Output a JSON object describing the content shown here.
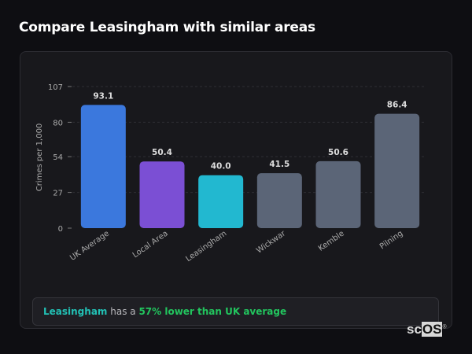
{
  "header": {
    "title": "Compare Leasingham with similar areas"
  },
  "chart_data": {
    "type": "bar",
    "title": "",
    "xlabel": "",
    "ylabel": "Crimes per 1,000",
    "ylim": [
      0,
      107
    ],
    "yticks": [
      0,
      27,
      54,
      80,
      107
    ],
    "grid": true,
    "categories": [
      "UK Average",
      "Local Area",
      "Leasingham",
      "Wickwar",
      "Kemble",
      "Pilning"
    ],
    "values": [
      93.1,
      50.4,
      40.0,
      41.5,
      50.6,
      86.4
    ],
    "value_labels": [
      "93.1",
      "50.4",
      "40.0",
      "41.5",
      "50.6",
      "86.4"
    ],
    "colors": [
      "#3b78dd",
      "#7b4fd4",
      "#22b8d0",
      "#5b6577",
      "#5b6577",
      "#5b6577"
    ]
  },
  "summary": {
    "area": "Leasingham",
    "middle": " has a ",
    "comparison": "57% lower than UK average"
  },
  "logo": {
    "text_a": "sc",
    "text_b": "OS",
    "mark": "®"
  }
}
